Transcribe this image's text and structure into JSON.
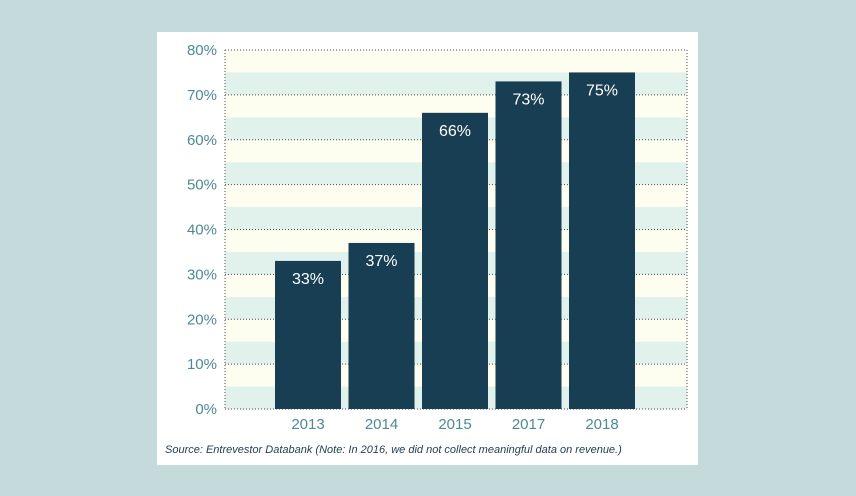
{
  "colors": {
    "page_background": "#c5dadb",
    "card_background": "#ffffff",
    "bar": "#173e52",
    "bar_label": "#ffffff",
    "tick_label": "#4d8a93",
    "band_light": "#fdfdf0",
    "band_mint": "#e1f1ec",
    "gridline": "#4a4a4a"
  },
  "source_note": "Source: Entrevestor Databank (Note: In 2016, we did not collect meaningful data on revenue.)",
  "chart_data": {
    "type": "bar",
    "categories": [
      "2013",
      "2014",
      "2015",
      "2017",
      "2018"
    ],
    "values": [
      33,
      37,
      66,
      73,
      75
    ],
    "value_labels": [
      "33%",
      "37%",
      "66%",
      "73%",
      "75%"
    ],
    "y_ticks": [
      0,
      10,
      20,
      30,
      40,
      50,
      60,
      70,
      80
    ],
    "y_tick_labels": [
      "0%",
      "10%",
      "20%",
      "30%",
      "40%",
      "50%",
      "60%",
      "70%",
      "80%"
    ],
    "ylim": [
      0,
      80
    ],
    "grid": "horizontal dotted lines with alternating background bands",
    "legend": "none",
    "title": "",
    "xlabel": "",
    "ylabel": ""
  }
}
